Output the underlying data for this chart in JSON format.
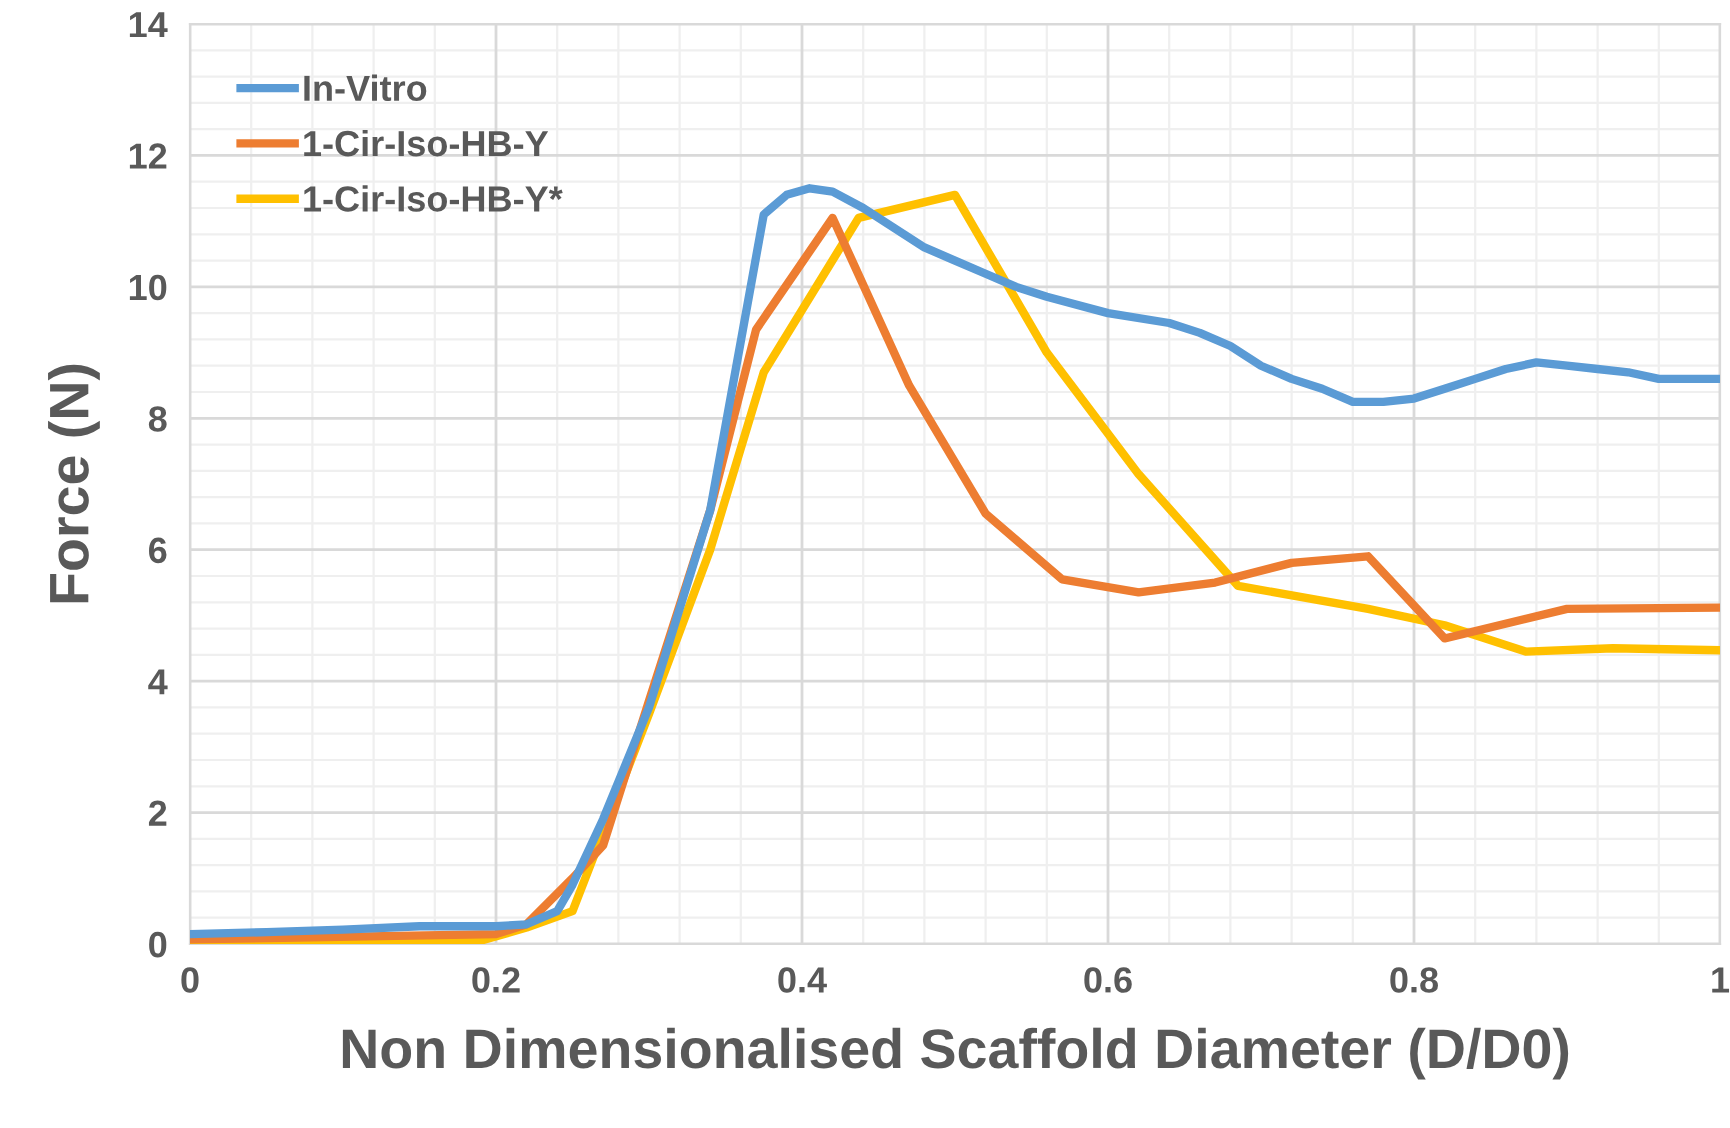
{
  "chart_data": {
    "type": "line",
    "xlabel": "Non Dimensionalised Scaffold Diameter (D/D0)",
    "ylabel": "Force (N)",
    "xlim": [
      0,
      1
    ],
    "ylim": [
      0,
      14
    ],
    "xticks": [
      0,
      0.2,
      0.4,
      0.6,
      0.8,
      1
    ],
    "yticks": [
      0,
      2,
      4,
      6,
      8,
      10,
      12,
      14
    ],
    "grid": true,
    "legend": "top left",
    "marker": "none",
    "line_style": "solid",
    "series": [
      {
        "name": "In-Vitro",
        "color": "#5b9bd5",
        "x": [
          0,
          0.05,
          0.1,
          0.15,
          0.2,
          0.22,
          0.24,
          0.25,
          0.27,
          0.3,
          0.34,
          0.375,
          0.39,
          0.405,
          0.42,
          0.44,
          0.46,
          0.48,
          0.5,
          0.52,
          0.54,
          0.56,
          0.6,
          0.64,
          0.66,
          0.68,
          0.7,
          0.72,
          0.74,
          0.76,
          0.78,
          0.8,
          0.82,
          0.84,
          0.86,
          0.88,
          0.9,
          0.92,
          0.94,
          0.96,
          1.0
        ],
        "values": [
          0.15,
          0.18,
          0.22,
          0.27,
          0.27,
          0.3,
          0.5,
          0.9,
          1.9,
          3.6,
          6.6,
          11.1,
          11.4,
          11.5,
          11.45,
          11.2,
          10.9,
          10.6,
          10.4,
          10.2,
          10.0,
          9.85,
          9.6,
          9.45,
          9.3,
          9.1,
          8.8,
          8.6,
          8.45,
          8.25,
          8.25,
          8.3,
          8.45,
          8.6,
          8.75,
          8.85,
          8.8,
          8.75,
          8.7,
          8.6,
          8.6
        ]
      },
      {
        "name": "1-Cir-Iso-HB-Y",
        "color": "#ed7d31",
        "x": [
          0,
          0.2,
          0.22,
          0.25,
          0.27,
          0.3,
          0.34,
          0.37,
          0.42,
          0.47,
          0.52,
          0.57,
          0.62,
          0.67,
          0.72,
          0.77,
          0.82,
          0.9,
          1.0
        ],
        "values": [
          0.07,
          0.15,
          0.3,
          1.0,
          1.5,
          3.7,
          6.6,
          9.35,
          11.05,
          8.5,
          6.55,
          5.55,
          5.35,
          5.5,
          5.8,
          5.9,
          4.65,
          5.1,
          5.12
        ]
      },
      {
        "name": "1-Cir-Iso-HB-Y*",
        "color": "#ffc000",
        "x": [
          0,
          0.19,
          0.22,
          0.25,
          0.3,
          0.34,
          0.375,
          0.437,
          0.5,
          0.56,
          0.62,
          0.685,
          0.77,
          0.82,
          0.873,
          0.93,
          1.0
        ],
        "values": [
          0.03,
          0.05,
          0.25,
          0.5,
          3.5,
          6.0,
          8.7,
          11.05,
          11.4,
          9.0,
          7.15,
          5.45,
          5.1,
          4.85,
          4.45,
          4.5,
          4.47
        ]
      }
    ]
  }
}
